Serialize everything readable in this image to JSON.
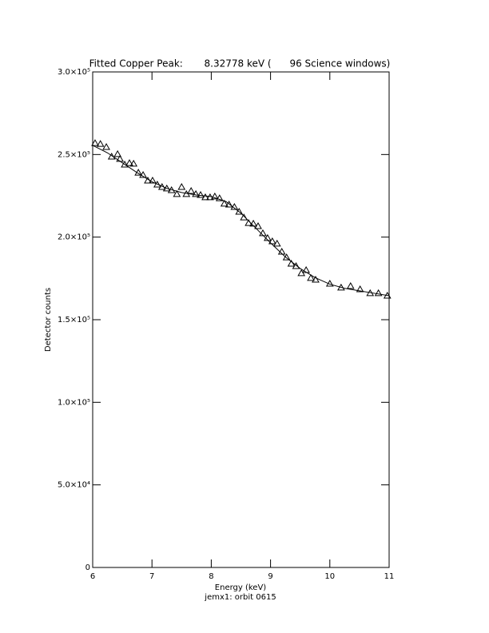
{
  "chart_data": {
    "type": "scatter",
    "title": "Fitted Copper Peak:       8.32778 keV (      96 Science windows)",
    "x_label": "Energy (keV)",
    "subtitle": "jemx1: orbit 0615",
    "y_label": "Detector counts",
    "xlim": [
      6,
      11
    ],
    "ylim": [
      0,
      300000
    ],
    "xticks": [
      6,
      7,
      8,
      9,
      10,
      11
    ],
    "yticks": [
      0,
      {
        "value": 50000,
        "label": "5.0×10⁴"
      },
      {
        "value": 100000,
        "label": "1.0×10⁵"
      },
      {
        "value": 150000,
        "label": "1.5×10⁵"
      },
      {
        "value": 200000,
        "label": "2.0×10⁵"
      },
      {
        "value": 250000,
        "label": "2.5×10⁵"
      },
      {
        "value": 300000,
        "label": "3.0×10⁵"
      }
    ],
    "series": [
      {
        "type": "scatter",
        "color": "#000000",
        "x": [
          6.04,
          6.13,
          6.23,
          6.32,
          6.42,
          6.46,
          6.54,
          6.62,
          6.69,
          6.77,
          6.85,
          6.93,
          7.01,
          7.09,
          7.17,
          7.25,
          7.33,
          7.42,
          7.5,
          7.58,
          7.66,
          7.74,
          7.82,
          7.9,
          7.98,
          8.06,
          8.14,
          8.22,
          8.3,
          8.39,
          8.47,
          8.55,
          8.63,
          8.71,
          8.79,
          8.87,
          8.95,
          9.03,
          9.11,
          9.19,
          9.27,
          9.35,
          9.43,
          9.52,
          9.6,
          9.68,
          9.76,
          10.0,
          10.19,
          10.35,
          10.51,
          10.68,
          10.82,
          10.97
        ],
        "values": [
          256900,
          256400,
          254500,
          248700,
          250200,
          247300,
          243900,
          244800,
          244400,
          239000,
          237600,
          234200,
          234200,
          231800,
          230300,
          229400,
          228400,
          226000,
          230300,
          226000,
          227900,
          226000,
          225500,
          224100,
          224100,
          224600,
          223500,
          220200,
          219700,
          218200,
          215300,
          211900,
          208500,
          208100,
          206600,
          202300,
          199400,
          197400,
          196000,
          191100,
          187700,
          183900,
          182400,
          178100,
          180000,
          175200,
          174200,
          171800,
          169400,
          170300,
          168400,
          166000,
          166000,
          164500
        ]
      },
      {
        "type": "line",
        "color": "#000000",
        "x": [
          6.0,
          6.25,
          6.5,
          6.75,
          7.0,
          7.25,
          7.5,
          7.75,
          8.0,
          8.25,
          8.5,
          8.75,
          9.0,
          9.25,
          9.5,
          9.75,
          10.0,
          10.25,
          10.5,
          10.75,
          11.0
        ],
        "values": [
          255500,
          251000,
          245000,
          239000,
          233500,
          229500,
          227000,
          225500,
          224500,
          221500,
          214500,
          205500,
          196500,
          188000,
          181000,
          175500,
          171500,
          169000,
          167500,
          166000,
          164500
        ]
      }
    ]
  }
}
